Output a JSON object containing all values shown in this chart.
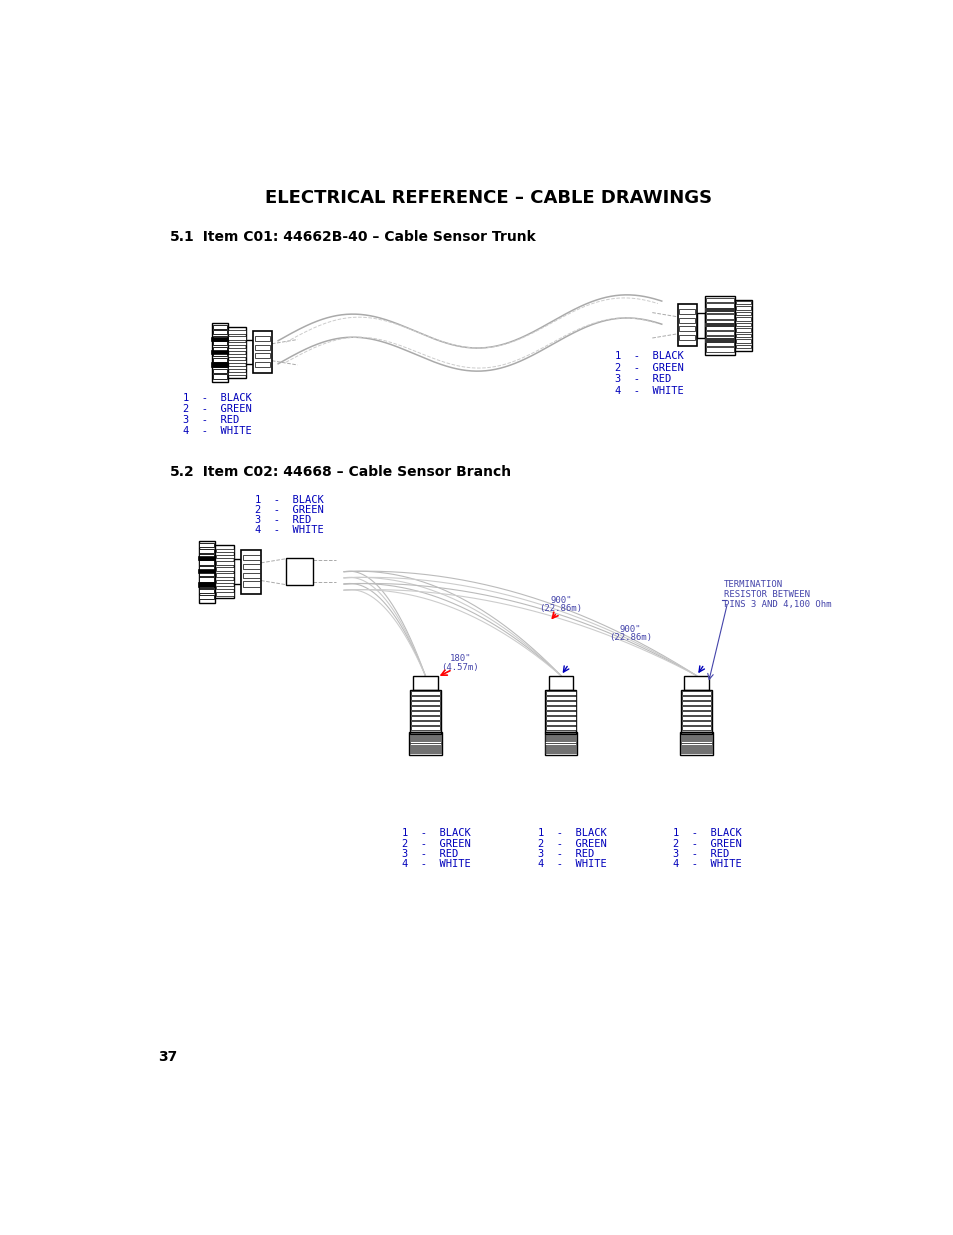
{
  "title": "ELECTRICAL REFERENCE – CABLE DRAWINGS",
  "section1_num": "5.1",
  "section1_label": "  Item C01: 44662B-40 – Cable Sensor Trunk",
  "section2_num": "5.2",
  "section2_label": "  Item C02: 44668 – Cable Sensor Branch",
  "pin_labels_dark": [
    "1  –  BLACK",
    "2  –  GREEN",
    "3  –  RED",
    "4  –  WHITE"
  ],
  "pin_labels_light": [
    "1  –  BLACK",
    "2  –  GREEN",
    "3  –  RED",
    "4  –  WHITE"
  ],
  "page_number": "37",
  "blue": "#0000BB",
  "blue_light": "#5555BB",
  "ann_blue": "#4444AA",
  "background": "#FFFFFF",
  "dim1": "900\"\n(22.86m)",
  "dim2": "900\"\n(22.86m)",
  "dim3": "180\"\n(4.57m)",
  "term_text": "TERMINATION\nRESISTOR BETWEEN\nPINS 3 AND 4,100 Ohm"
}
